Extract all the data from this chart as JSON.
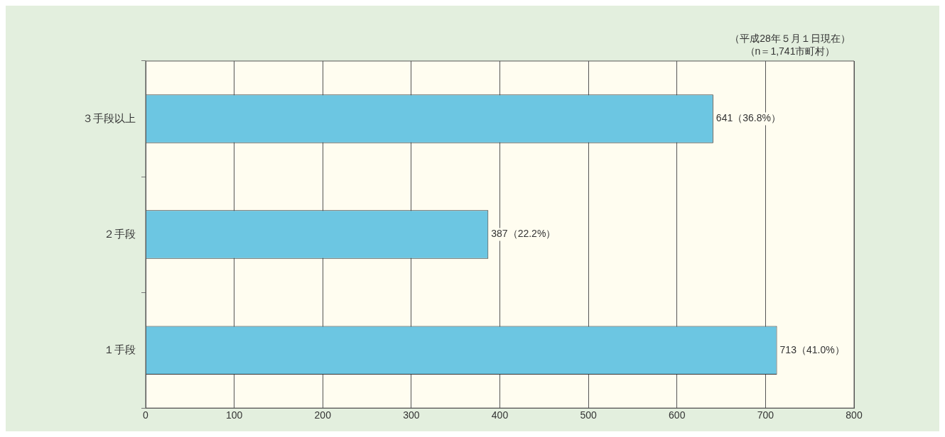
{
  "chart_data": {
    "type": "bar",
    "orientation": "horizontal",
    "categories": [
      "３手段以上",
      "２手段",
      "１手段"
    ],
    "values": [
      641,
      387,
      713
    ],
    "color": "#6cc6e2",
    "value_labels": [
      "641（36.8%）",
      "387（22.2%）",
      "713（41.0%）"
    ],
    "xlim": [
      0,
      800
    ],
    "xticks": [
      0,
      100,
      200,
      300,
      400,
      500,
      600,
      700,
      800
    ],
    "grid": "x",
    "legend": false,
    "annotations": [
      "（平成28年５月１日現在）",
      "（n＝1,741市町村）"
    ]
  }
}
